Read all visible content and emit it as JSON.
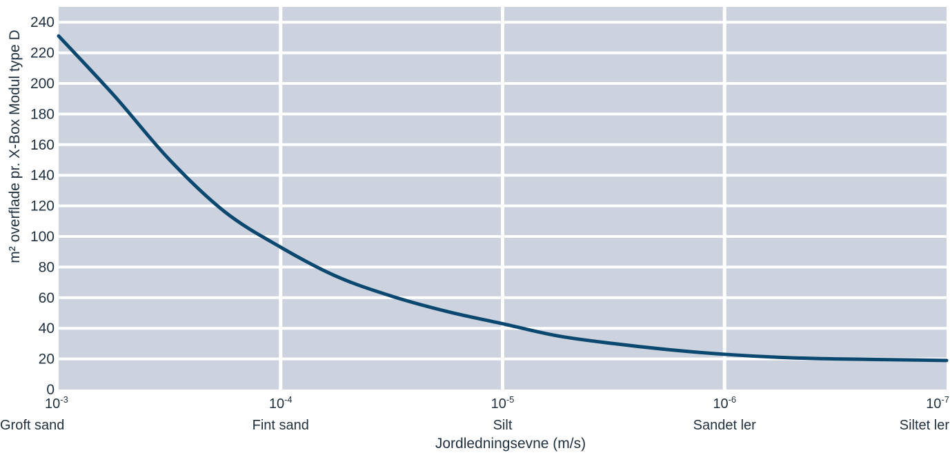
{
  "chart_data": {
    "type": "line",
    "title": "",
    "xlabel": "Jordledningsevne (m/s)",
    "ylabel": "m² overflade pr. X-Box Modul type D",
    "x_scale": "log",
    "x_ticks": [
      {
        "value": 0.001,
        "base": "10",
        "exp": "-3",
        "label": "Groft sand"
      },
      {
        "value": 0.0001,
        "base": "10",
        "exp": "-4",
        "label": "Fint sand"
      },
      {
        "value": 1e-05,
        "base": "10",
        "exp": "-5",
        "label": "Silt"
      },
      {
        "value": 1e-06,
        "base": "10",
        "exp": "-6",
        "label": "Sandet ler"
      },
      {
        "value": 1e-07,
        "base": "10",
        "exp": "-7",
        "label": "Siltet ler"
      }
    ],
    "xlim": [
      0.001,
      1e-07
    ],
    "ylim": [
      0,
      250
    ],
    "y_ticks": [
      0,
      20,
      40,
      60,
      80,
      100,
      120,
      140,
      160,
      180,
      200,
      220,
      240
    ],
    "grid": true,
    "colors": {
      "background": "#cdd3de",
      "grid": "#ffffff",
      "line": "#0b4870",
      "text": "#1f2f3d"
    },
    "series": [
      {
        "x": [
          0.001,
          0.000562,
          0.000316,
          0.000178,
          0.0001,
          5.62e-05,
          3.16e-05,
          1.78e-05,
          1e-05,
          5.62e-06,
          3.16e-06,
          1.78e-06,
          1e-06,
          5.62e-07,
          3.16e-07,
          1.78e-07,
          1e-07
        ],
        "values": [
          231,
          192,
          150,
          116,
          93,
          74,
          61,
          51,
          43,
          35,
          30,
          26,
          23,
          21,
          20,
          19.5,
          19
        ]
      }
    ]
  }
}
